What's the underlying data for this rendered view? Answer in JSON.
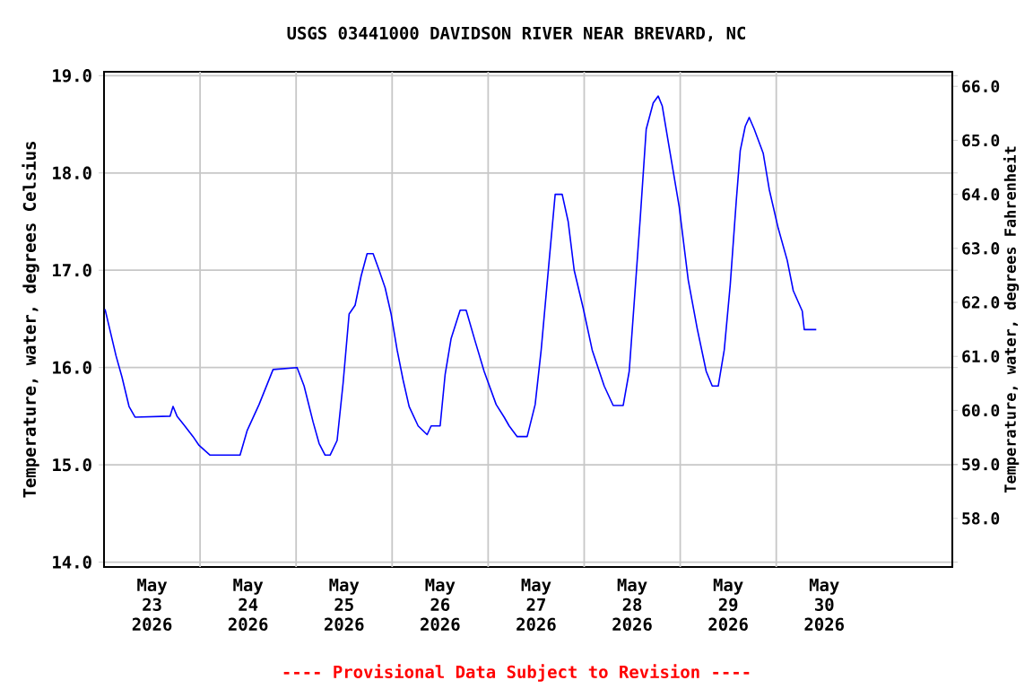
{
  "chart_data": {
    "type": "line",
    "title": "USGS 03441000 DAVIDSON RIVER NEAR BREVARD, NC",
    "ylabel": "Temperature, water, degrees Celsius",
    "y2label": "Temperature, water, degrees Fahrenheit",
    "annotations": [
      "---- Provisional Data Subject to Revision ----"
    ],
    "xlim": [
      "2026-05-23T00:00",
      "2026-05-31T20:00"
    ],
    "xticks": [
      {
        "value": "2026-05-23T12:00",
        "label": "May 23 2026"
      },
      {
        "value": "2026-05-24T12:00",
        "label": "May 24 2026"
      },
      {
        "value": "2026-05-25T12:00",
        "label": "May 25 2026"
      },
      {
        "value": "2026-05-26T12:00",
        "label": "May 26 2026"
      },
      {
        "value": "2026-05-27T12:00",
        "label": "May 27 2026"
      },
      {
        "value": "2026-05-28T12:00",
        "label": "May 28 2026"
      },
      {
        "value": "2026-05-29T12:00",
        "label": "May 29 2026"
      },
      {
        "value": "2026-05-30T12:00",
        "label": "May 30 2026"
      },
      {
        "value": "2026-05-24T00:00",
        "label": null
      },
      {
        "value": "2026-05-25T00:00",
        "label": null
      },
      {
        "value": "2026-05-26T00:00",
        "label": null
      },
      {
        "value": "2026-05-27T00:00",
        "label": null
      },
      {
        "value": "2026-05-28T00:00",
        "label": null
      },
      {
        "value": "2026-05-29T00:00",
        "label": null
      },
      {
        "value": "2026-05-30T00:00",
        "label": null
      }
    ],
    "ylim": [
      13.95,
      19.04
    ],
    "yticks": [
      {
        "value": 14,
        "label": "14.0"
      },
      {
        "value": 15,
        "label": "15.0"
      },
      {
        "value": 16,
        "label": "16.0"
      },
      {
        "value": 17,
        "label": "17.0"
      },
      {
        "value": 18,
        "label": "18.0"
      },
      {
        "value": 19,
        "label": "19.0"
      }
    ],
    "y2lim": [
      57.1,
      66.27
    ],
    "y2ticks": [
      {
        "value": 58,
        "label": "58.0"
      },
      {
        "value": 59,
        "label": "59.0"
      },
      {
        "value": 60,
        "label": "60.0"
      },
      {
        "value": 61,
        "label": "61.0"
      },
      {
        "value": 62,
        "label": "62.0"
      },
      {
        "value": 63,
        "label": "63.0"
      },
      {
        "value": 64,
        "label": "64.0"
      },
      {
        "value": 65,
        "label": "65.0"
      },
      {
        "value": 66,
        "label": "66.0"
      }
    ],
    "grid": true,
    "marker": "none",
    "line_style": "solid",
    "x": [
      "2026-05-23T00:15",
      "2026-05-23T03:00",
      "2026-05-23T04:30",
      "2026-05-23T06:15",
      "2026-05-23T07:45",
      "2026-05-23T16:30",
      "2026-05-23T17:15",
      "2026-05-23T18:15",
      "2026-05-23T20:00",
      "2026-05-23T22:15",
      "2026-05-23T23:45",
      "2026-05-24T02:30",
      "2026-05-24T10:00",
      "2026-05-24T11:45",
      "2026-05-24T14:45",
      "2026-05-24T18:15",
      "2026-05-25T00:15",
      "2026-05-25T02:00",
      "2026-05-25T04:15",
      "2026-05-25T05:45",
      "2026-05-25T07:15",
      "2026-05-25T08:30",
      "2026-05-25T10:15",
      "2026-05-25T11:45",
      "2026-05-25T13:15",
      "2026-05-25T14:45",
      "2026-05-25T16:15",
      "2026-05-25T17:45",
      "2026-05-25T19:15",
      "2026-05-25T20:45",
      "2026-05-25T22:15",
      "2026-05-25T23:45",
      "2026-05-26T01:15",
      "2026-05-26T02:45",
      "2026-05-26T04:15",
      "2026-05-26T06:30",
      "2026-05-26T08:45",
      "2026-05-26T09:45",
      "2026-05-26T12:00",
      "2026-05-26T13:15",
      "2026-05-26T14:45",
      "2026-05-26T17:00",
      "2026-05-26T18:30",
      "2026-05-26T20:45",
      "2026-05-26T23:00",
      "2026-05-27T02:00",
      "2026-05-27T04:00",
      "2026-05-27T05:15",
      "2026-05-27T07:15",
      "2026-05-27T09:45",
      "2026-05-27T11:45",
      "2026-05-27T13:15",
      "2026-05-27T15:15",
      "2026-05-27T16:45",
      "2026-05-27T18:30",
      "2026-05-27T20:00",
      "2026-05-27T21:30",
      "2026-05-27T23:45",
      "2026-05-28T02:00",
      "2026-05-28T05:00",
      "2026-05-28T07:15",
      "2026-05-28T09:45",
      "2026-05-28T11:15",
      "2026-05-28T12:30",
      "2026-05-28T14:00",
      "2026-05-28T15:30",
      "2026-05-28T17:15",
      "2026-05-28T18:30",
      "2026-05-28T19:30",
      "2026-05-28T21:30",
      "2026-05-28T23:45",
      "2026-05-29T02:00",
      "2026-05-29T04:15",
      "2026-05-29T06:30",
      "2026-05-29T08:00",
      "2026-05-29T09:30",
      "2026-05-29T11:00",
      "2026-05-29T12:30",
      "2026-05-29T14:00",
      "2026-05-29T15:00",
      "2026-05-29T16:15",
      "2026-05-29T17:15",
      "2026-05-29T18:30",
      "2026-05-29T20:45",
      "2026-05-29T22:15",
      "2026-05-30T00:30",
      "2026-05-30T02:45",
      "2026-05-30T04:15",
      "2026-05-30T06:30",
      "2026-05-30T07:00",
      "2026-05-30T10:00"
    ],
    "series": [
      {
        "color": "#0000ff",
        "values": [
          16.6,
          16.12,
          15.9,
          15.6,
          15.49,
          15.5,
          15.6,
          15.5,
          15.41,
          15.29,
          15.2,
          15.1,
          15.1,
          15.35,
          15.62,
          15.98,
          16.0,
          15.81,
          15.44,
          15.22,
          15.1,
          15.1,
          15.25,
          15.84,
          16.55,
          16.64,
          16.94,
          17.17,
          17.17,
          17.0,
          16.82,
          16.55,
          16.18,
          15.87,
          15.6,
          15.4,
          15.31,
          15.4,
          15.4,
          15.93,
          16.3,
          16.59,
          16.59,
          16.27,
          15.96,
          15.62,
          15.49,
          15.4,
          15.29,
          15.29,
          15.62,
          16.18,
          17.1,
          17.78,
          17.78,
          17.5,
          17.0,
          16.61,
          16.18,
          15.81,
          15.61,
          15.61,
          15.96,
          16.67,
          17.53,
          18.45,
          18.72,
          18.79,
          18.69,
          18.2,
          17.65,
          16.9,
          16.4,
          15.96,
          15.81,
          15.81,
          16.18,
          16.85,
          17.71,
          18.23,
          18.48,
          18.57,
          18.45,
          18.2,
          17.83,
          17.43,
          17.1,
          16.79,
          16.58,
          16.39,
          16.39
        ]
      }
    ]
  }
}
